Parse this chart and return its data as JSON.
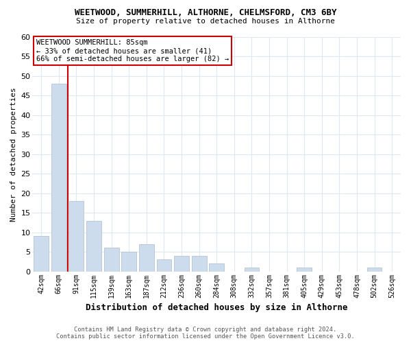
{
  "title": "WEETWOOD, SUMMERHILL, ALTHORNE, CHELMSFORD, CM3 6BY",
  "subtitle": "Size of property relative to detached houses in Althorne",
  "xlabel": "Distribution of detached houses by size in Althorne",
  "ylabel": "Number of detached properties",
  "bar_color": "#ccdcec",
  "bar_edge_color": "#aabccc",
  "categories": [
    "42sqm",
    "66sqm",
    "91sqm",
    "115sqm",
    "139sqm",
    "163sqm",
    "187sqm",
    "212sqm",
    "236sqm",
    "260sqm",
    "284sqm",
    "308sqm",
    "332sqm",
    "357sqm",
    "381sqm",
    "405sqm",
    "429sqm",
    "453sqm",
    "478sqm",
    "502sqm",
    "526sqm"
  ],
  "values": [
    9,
    48,
    18,
    13,
    6,
    5,
    7,
    3,
    4,
    4,
    2,
    0,
    1,
    0,
    0,
    1,
    0,
    0,
    0,
    1,
    0
  ],
  "ylim": [
    0,
    60
  ],
  "yticks": [
    0,
    5,
    10,
    15,
    20,
    25,
    30,
    35,
    40,
    45,
    50,
    55,
    60
  ],
  "vline_x": 1.5,
  "vline_color": "#cc0000",
  "annotation_text": "WEETWOOD SUMMERHILL: 85sqm\n← 33% of detached houses are smaller (41)\n66% of semi-detached houses are larger (82) →",
  "annotation_box_color": "#ffffff",
  "annotation_box_edge_color": "#cc0000",
  "footer_text": "Contains HM Land Registry data © Crown copyright and database right 2024.\nContains public sector information licensed under the Open Government Licence v3.0.",
  "grid_color": "#dde8f0",
  "bg_color": "#ffffff"
}
